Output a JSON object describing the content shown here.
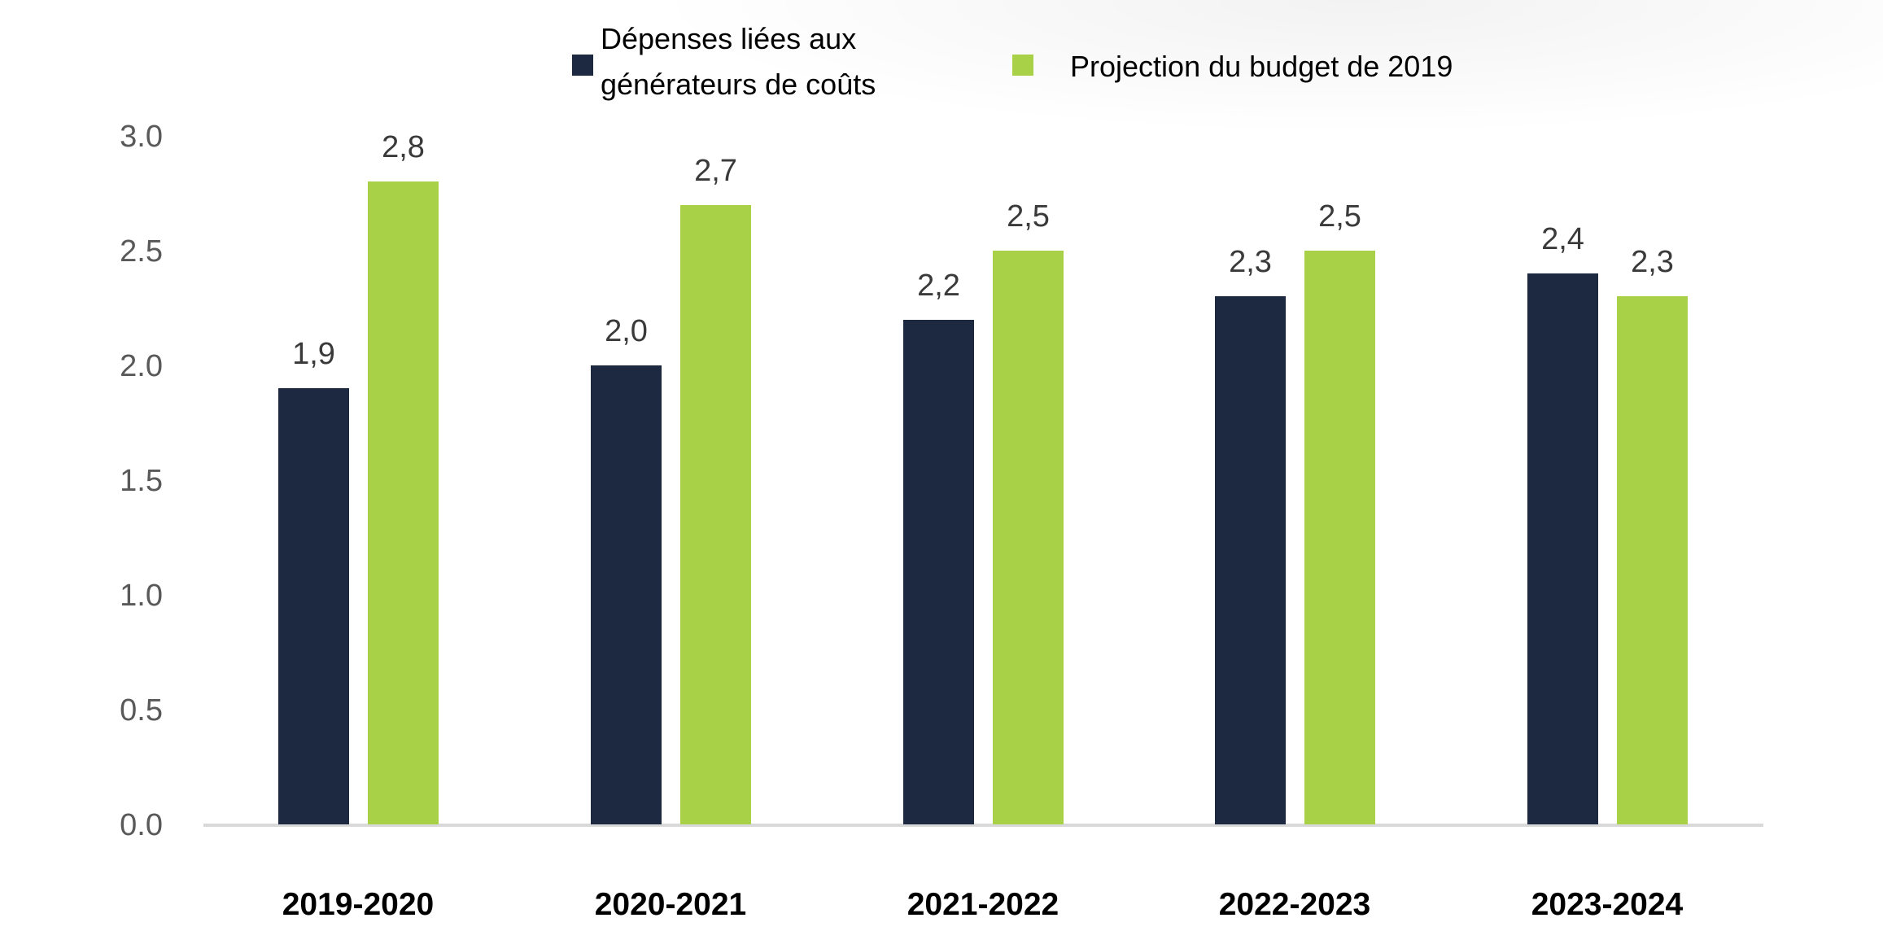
{
  "legend": {
    "items": [
      {
        "label": "Dépenses liées aux générateurs de coûts",
        "color": "#1d2940"
      },
      {
        "label": "Projection du budget de 2019",
        "color": "#a8d148"
      }
    ]
  },
  "chart_data": {
    "type": "bar",
    "categories": [
      "2019-2020",
      "2020-2021",
      "2021-2022",
      "2022-2023",
      "2023-2024"
    ],
    "series": [
      {
        "name": "Dépenses liées aux générateurs de coûts",
        "color": "#1d2940",
        "values": [
          1.9,
          2.0,
          2.2,
          2.3,
          2.4
        ],
        "labels": [
          "1,9",
          "2,0",
          "2,2",
          "2,3",
          "2,4"
        ]
      },
      {
        "name": "Projection du budget de 2019",
        "color": "#a8d148",
        "values": [
          2.8,
          2.7,
          2.5,
          2.5,
          2.3
        ],
        "labels": [
          "2,8",
          "2,7",
          "2,5",
          "2,5",
          "2,3"
        ]
      }
    ],
    "title": "",
    "xlabel": "",
    "ylabel": "",
    "ylim": [
      0,
      3
    ],
    "y_ticks": [
      "3.0",
      "2.5",
      "2.0",
      "1.5",
      "1.0",
      "0.5",
      "0.0"
    ],
    "grid": false,
    "legend_position": "top",
    "axis_line_color": "#d9d9d9",
    "tick_label_color": "#595959",
    "data_label_color": "#3a3a3a"
  }
}
